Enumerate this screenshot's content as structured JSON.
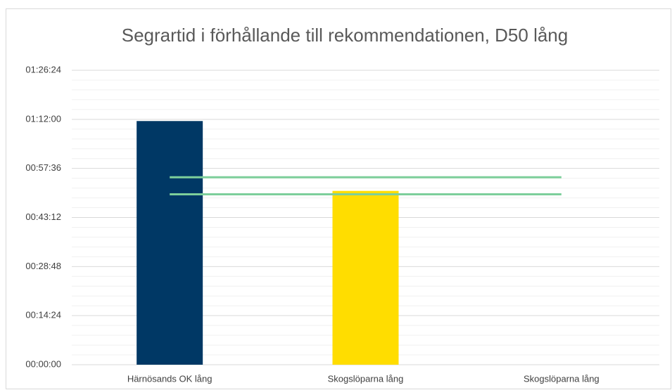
{
  "chart_data": {
    "type": "bar",
    "title": "Segrartid i förhållande till rekommendationen, D50 lång",
    "categories": [
      "Härnösands OK lång",
      "Skogslöparna lång",
      "Skogslöparna lång"
    ],
    "series": [
      {
        "type": "bar",
        "values": [
          71.5,
          51,
          null
        ],
        "colors": [
          "#003865",
          "#ffdd00",
          null
        ]
      },
      {
        "type": "line",
        "color": "#7dcf9b",
        "values": [
          55,
          55,
          55
        ]
      },
      {
        "type": "line",
        "color": "#7dcf9b",
        "values": [
          50,
          50,
          50
        ]
      }
    ],
    "ylim": [
      0,
      86.4
    ],
    "yticks": [
      {
        "value": 0,
        "label": "00:00:00"
      },
      {
        "value": 14.4,
        "label": "00:14:24"
      },
      {
        "value": 28.8,
        "label": "00:28:48"
      },
      {
        "value": 43.2,
        "label": "00:43:12"
      },
      {
        "value": 57.6,
        "label": "00:57:36"
      },
      {
        "value": 72,
        "label": "01:12:00"
      },
      {
        "value": 86.4,
        "label": "01:26:24"
      }
    ],
    "grid": true,
    "minor_grid": true
  }
}
